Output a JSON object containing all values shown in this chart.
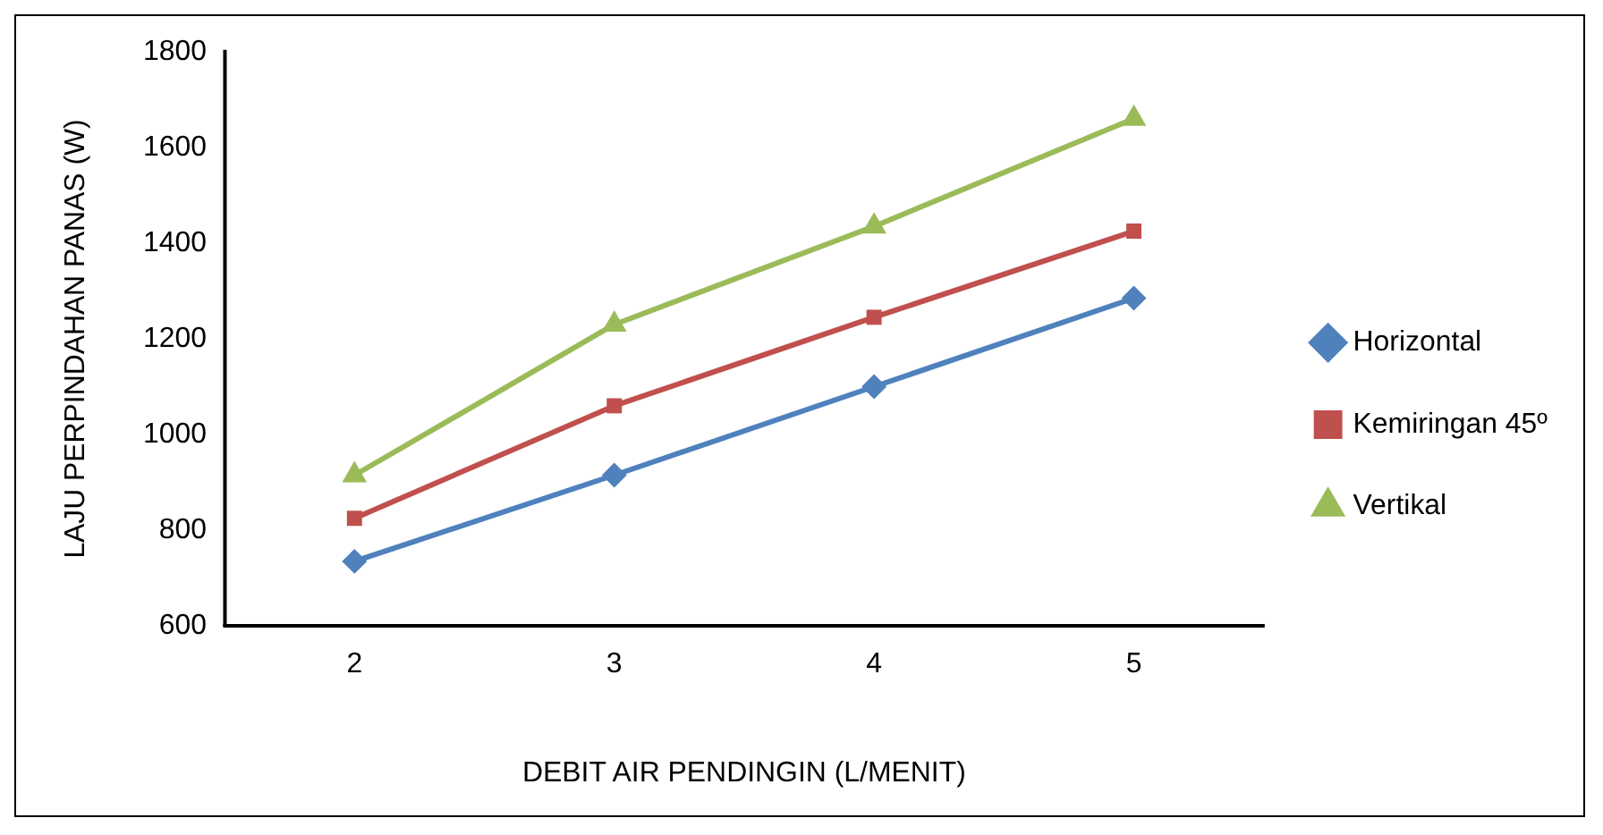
{
  "chart_data": {
    "type": "line",
    "xlabel": "DEBIT AIR PENDINGIN (L/MENIT)",
    "ylabel": "LAJU PERPINDAHAN PANAS (W)",
    "categories": [
      "2",
      "3",
      "4",
      "5"
    ],
    "series": [
      {
        "name": "Horizontal",
        "color": "#4f81bd",
        "marker": "diamond",
        "values": [
          735,
          915,
          1100,
          1285
        ]
      },
      {
        "name": "Kemiringan 45º",
        "color": "#c0504d",
        "marker": "square",
        "values": [
          825,
          1060,
          1245,
          1425
        ]
      },
      {
        "name": "Vertikal",
        "color": "#9bbb59",
        "marker": "triangle",
        "values": [
          915,
          1230,
          1435,
          1660
        ]
      }
    ],
    "ylim": [
      600,
      1800
    ],
    "yticks": [
      600,
      800,
      1000,
      1200,
      1400,
      1600,
      1800
    ],
    "grid": false,
    "legend": "right"
  }
}
